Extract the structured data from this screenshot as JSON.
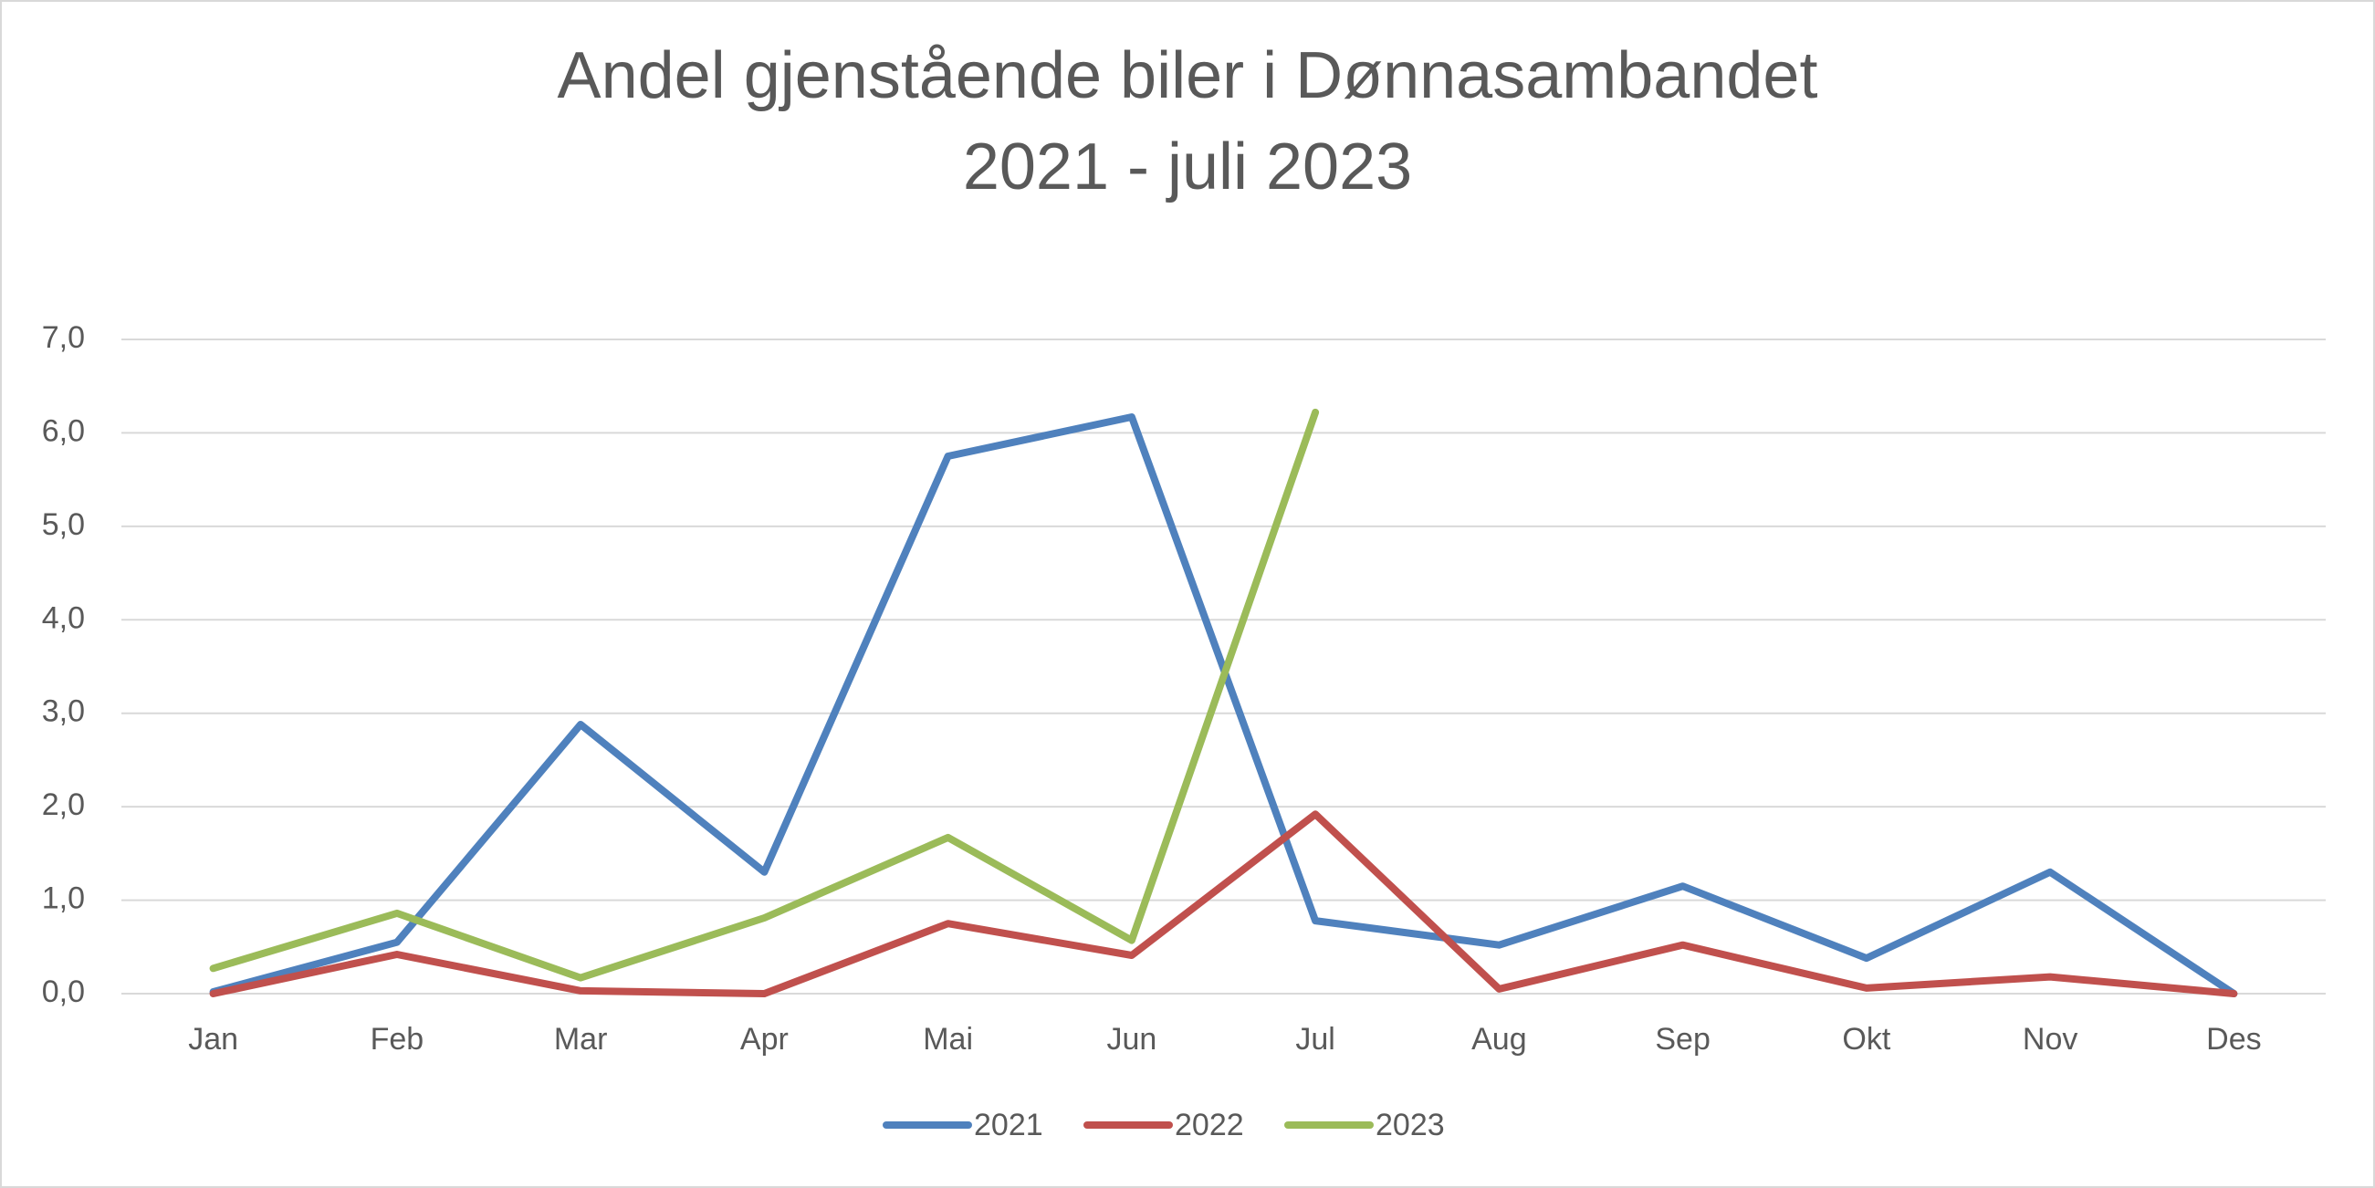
{
  "chart_data": {
    "type": "line",
    "title": "Andel gjenstående biler i Dønnasambandet",
    "subtitle": "2021 - juli 2023",
    "categories": [
      "Jan",
      "Feb",
      "Mar",
      "Apr",
      "Mai",
      "Jun",
      "Jul",
      "Aug",
      "Sep",
      "Okt",
      "Nov",
      "Des"
    ],
    "series": [
      {
        "name": "2021",
        "color": "#4f81bd",
        "values": [
          0.02,
          0.55,
          2.88,
          1.3,
          5.75,
          6.17,
          0.78,
          0.52,
          1.15,
          0.38,
          1.3,
          0.0
        ]
      },
      {
        "name": "2022",
        "color": "#c0504d",
        "values": [
          0.0,
          0.42,
          0.03,
          0.0,
          0.75,
          0.41,
          1.92,
          0.05,
          0.52,
          0.06,
          0.18,
          0.0
        ]
      },
      {
        "name": "2023",
        "color": "#9bbb59",
        "values": [
          0.27,
          0.86,
          0.17,
          0.81,
          1.67,
          0.57,
          6.22,
          null,
          null,
          null,
          null,
          null
        ]
      }
    ],
    "ylim": [
      0,
      7
    ],
    "yticks": [
      {
        "value": 0,
        "label": "0,0"
      },
      {
        "value": 1,
        "label": "1,0"
      },
      {
        "value": 2,
        "label": "2,0"
      },
      {
        "value": 3,
        "label": "3,0"
      },
      {
        "value": 4,
        "label": "4,0"
      },
      {
        "value": 5,
        "label": "5,0"
      },
      {
        "value": 6,
        "label": "6,0"
      },
      {
        "value": 7,
        "label": "7,0"
      }
    ],
    "grid": true,
    "legend": "bottom"
  }
}
